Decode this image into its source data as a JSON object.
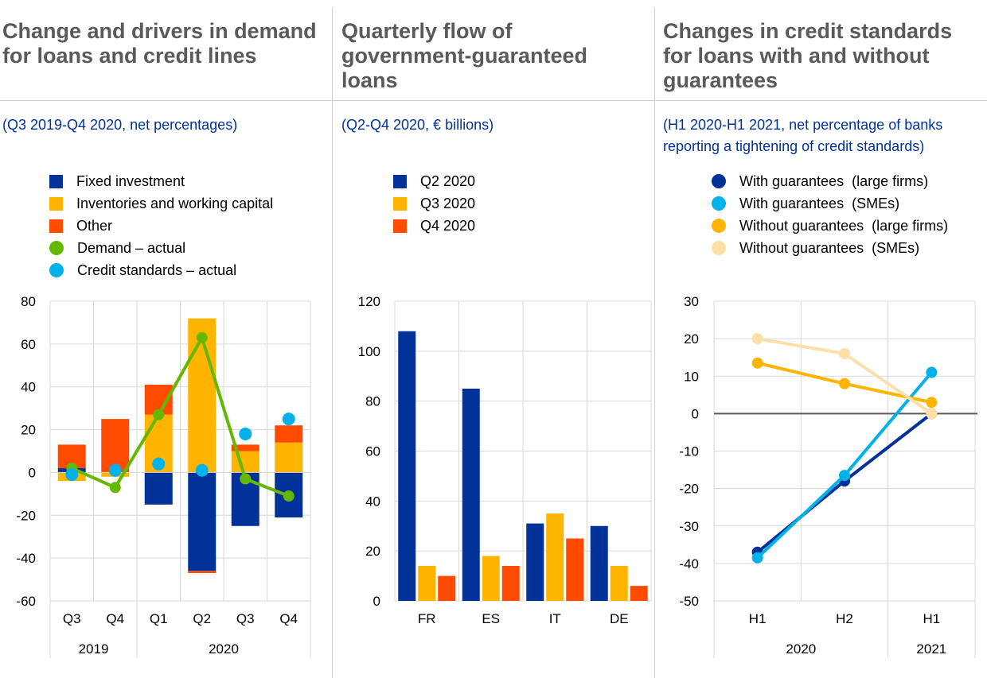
{
  "panels": [
    {
      "title": "Change and drivers in demand for loans and credit lines",
      "subtitle": "(Q3 2019-Q4 2020, net percentages)",
      "legend": [
        {
          "label": "Fixed investment",
          "kind": "square",
          "color": "#003299"
        },
        {
          "label": "Inventories and working capital",
          "kind": "square",
          "color": "#FFB400"
        },
        {
          "label": "Other",
          "kind": "square",
          "color": "#FF4B00"
        },
        {
          "label": "Demand – actual",
          "kind": "dot",
          "color": "#65B800"
        },
        {
          "label": "Credit standards – actual",
          "kind": "dot",
          "color": "#00B1EA"
        }
      ]
    },
    {
      "title": "Quarterly flow of government-guaranteed loans",
      "subtitle": "(Q2-Q4 2020, € billions)",
      "legend": [
        {
          "label": "Q2 2020",
          "kind": "square",
          "color": "#003299"
        },
        {
          "label": "Q3 2020",
          "kind": "square",
          "color": "#FFB400"
        },
        {
          "label": "Q4 2020",
          "kind": "square",
          "color": "#FF4B00"
        }
      ]
    },
    {
      "title": "Changes in credit standards for loans with and without guarantees",
      "subtitle": "(H1 2020-H1 2021, net percentage of banks reporting a tightening of credit standards)",
      "legend": [
        {
          "label": "With guarantees  (large firms)",
          "kind": "dot",
          "color": "#003299"
        },
        {
          "label": "With guarantees  (SMEs)",
          "kind": "dot",
          "color": "#00B1EA"
        },
        {
          "label": "Without guarantees  (large firms)",
          "kind": "dot",
          "color": "#FFB400"
        },
        {
          "label": "Without guarantees  (SMEs)",
          "kind": "dot",
          "color": "#FFDFA8"
        }
      ]
    }
  ],
  "chart_data": [
    {
      "type": "bar",
      "stacked": true,
      "title": "Change and drivers in demand for loans and credit lines",
      "categories": [
        "Q3",
        "Q4",
        "Q1",
        "Q2",
        "Q3",
        "Q4"
      ],
      "groups": [
        {
          "label": "2019",
          "span": 2
        },
        {
          "label": "2020",
          "span": 4
        }
      ],
      "ylim": [
        -60,
        80
      ],
      "yticks": [
        -60,
        -40,
        -20,
        0,
        20,
        40,
        60,
        80
      ],
      "grid": true,
      "series": [
        {
          "name": "Fixed investment",
          "type": "bar",
          "color": "#003299",
          "values": [
            2,
            0,
            -15,
            -46,
            -25,
            -21
          ]
        },
        {
          "name": "Inventories and working capital",
          "type": "bar",
          "color": "#FFB400",
          "values": [
            -4,
            -2,
            27,
            72,
            10,
            14
          ]
        },
        {
          "name": "Other",
          "type": "bar",
          "color": "#FF4B00",
          "values": [
            11,
            25,
            14,
            -1,
            3,
            8
          ]
        },
        {
          "name": "Demand – actual",
          "type": "line",
          "color": "#65B800",
          "values": [
            2,
            -7,
            27,
            63,
            -3,
            -11
          ]
        },
        {
          "name": "Credit standards – actual",
          "type": "scatter",
          "color": "#00B1EA",
          "values": [
            -1,
            1,
            4,
            1,
            18,
            25
          ]
        }
      ]
    },
    {
      "type": "bar",
      "title": "Quarterly flow of government-guaranteed loans",
      "categories": [
        "FR",
        "ES",
        "IT",
        "DE"
      ],
      "ylim": [
        0,
        120
      ],
      "yticks": [
        0,
        20,
        40,
        60,
        80,
        100,
        120
      ],
      "grid": true,
      "series": [
        {
          "name": "Q2 2020",
          "color": "#003299",
          "values": [
            108,
            85,
            31,
            30
          ]
        },
        {
          "name": "Q3 2020",
          "color": "#FFB400",
          "values": [
            14,
            18,
            35,
            14
          ]
        },
        {
          "name": "Q4 2020",
          "color": "#FF4B00",
          "values": [
            10,
            14,
            25,
            6
          ]
        }
      ]
    },
    {
      "type": "line",
      "title": "Changes in credit standards for loans with and without guarantees",
      "categories": [
        "H1",
        "H2",
        "H1"
      ],
      "groups": [
        {
          "label": "2020",
          "span": 2
        },
        {
          "label": "2021",
          "span": 1
        }
      ],
      "ylim": [
        -50,
        30
      ],
      "yticks": [
        -50,
        -40,
        -30,
        -20,
        -10,
        0,
        10,
        20,
        30
      ],
      "grid": true,
      "series": [
        {
          "name": "With guarantees  (large firms)",
          "color": "#003299",
          "values": [
            -37,
            -18,
            0
          ]
        },
        {
          "name": "With guarantees  (SMEs)",
          "color": "#00B1EA",
          "values": [
            -38.5,
            -16.5,
            11
          ]
        },
        {
          "name": "Without guarantees  (large firms)",
          "color": "#FFB400",
          "values": [
            13.5,
            8,
            3
          ]
        },
        {
          "name": "Without guarantees  (SMEs)",
          "color": "#FFDFA8",
          "values": [
            20,
            16,
            0
          ]
        }
      ]
    }
  ]
}
